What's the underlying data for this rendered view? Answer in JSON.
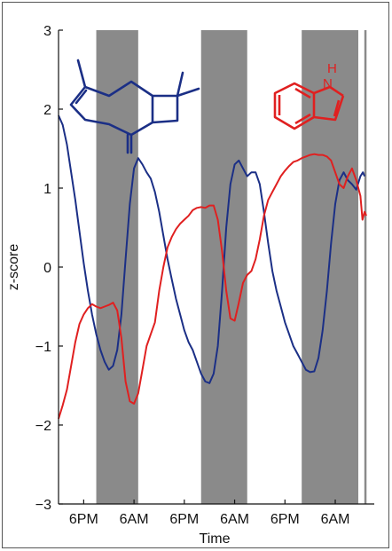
{
  "chart_data": {
    "type": "line",
    "xlabel": "Time",
    "ylabel": "z-score",
    "x_range": [
      0,
      72
    ],
    "ylim": [
      -3,
      3
    ],
    "y_ticks": [
      -3,
      -2,
      -1,
      0,
      1,
      2,
      3
    ],
    "x_ticks": [
      {
        "x": 6,
        "label": "6PM"
      },
      {
        "x": 18,
        "label": "6AM"
      },
      {
        "x": 30,
        "label": "6PM"
      },
      {
        "x": 42,
        "label": "6AM"
      },
      {
        "x": 54,
        "label": "6PM"
      },
      {
        "x": 66,
        "label": "6AM"
      }
    ],
    "dark_periods": [
      [
        9,
        19
      ],
      [
        34,
        45
      ],
      [
        58,
        72.5
      ]
    ],
    "end_marker_x": 73.2,
    "series": [
      {
        "color": "#1b2f86",
        "points": [
          [
            0,
            1.92
          ],
          [
            1,
            1.8
          ],
          [
            2,
            1.55
          ],
          [
            3,
            1.2
          ],
          [
            4,
            0.85
          ],
          [
            5,
            0.45
          ],
          [
            6,
            0.05
          ],
          [
            7,
            -0.3
          ],
          [
            8,
            -0.6
          ],
          [
            9,
            -0.85
          ],
          [
            10,
            -1.05
          ],
          [
            11,
            -1.2
          ],
          [
            12,
            -1.3
          ],
          [
            13,
            -1.25
          ],
          [
            14,
            -1.05
          ],
          [
            15,
            -0.6
          ],
          [
            16,
            0.1
          ],
          [
            17,
            0.8
          ],
          [
            18,
            1.25
          ],
          [
            19,
            1.38
          ],
          [
            20,
            1.3
          ],
          [
            21,
            1.2
          ],
          [
            22,
            1.12
          ],
          [
            23,
            0.95
          ],
          [
            24,
            0.7
          ],
          [
            25,
            0.4
          ],
          [
            26,
            0.1
          ],
          [
            27,
            -0.15
          ],
          [
            28,
            -0.4
          ],
          [
            29,
            -0.6
          ],
          [
            30,
            -0.8
          ],
          [
            31,
            -0.95
          ],
          [
            32,
            -1.05
          ],
          [
            33,
            -1.2
          ],
          [
            34,
            -1.35
          ],
          [
            35,
            -1.45
          ],
          [
            36,
            -1.47
          ],
          [
            37,
            -1.35
          ],
          [
            38,
            -1.0
          ],
          [
            39,
            -0.3
          ],
          [
            40,
            0.5
          ],
          [
            41,
            1.05
          ],
          [
            42,
            1.3
          ],
          [
            43,
            1.35
          ],
          [
            44,
            1.25
          ],
          [
            45,
            1.15
          ],
          [
            46,
            1.2
          ],
          [
            47,
            1.2
          ],
          [
            48,
            1.05
          ],
          [
            49,
            0.7
          ],
          [
            50,
            0.3
          ],
          [
            51,
            -0.05
          ],
          [
            52,
            -0.3
          ],
          [
            53,
            -0.5
          ],
          [
            54,
            -0.7
          ],
          [
            55,
            -0.85
          ],
          [
            56,
            -1.0
          ],
          [
            57,
            -1.1
          ],
          [
            58,
            -1.2
          ],
          [
            59,
            -1.3
          ],
          [
            60,
            -1.33
          ],
          [
            61,
            -1.32
          ],
          [
            62,
            -1.15
          ],
          [
            63,
            -0.8
          ],
          [
            64,
            -0.3
          ],
          [
            65,
            0.3
          ],
          [
            66,
            0.8
          ],
          [
            67,
            1.1
          ],
          [
            68,
            1.2
          ],
          [
            69,
            1.1
          ],
          [
            70,
            1.05
          ],
          [
            71,
            0.98
          ],
          [
            72,
            1.15
          ],
          [
            72.6,
            1.2
          ],
          [
            73,
            1.15
          ]
        ]
      },
      {
        "color": "#e02020",
        "points": [
          [
            0,
            -1.92
          ],
          [
            1,
            -1.75
          ],
          [
            2,
            -1.55
          ],
          [
            3,
            -1.25
          ],
          [
            4,
            -0.95
          ],
          [
            5,
            -0.72
          ],
          [
            6,
            -0.6
          ],
          [
            7,
            -0.52
          ],
          [
            8,
            -0.47
          ],
          [
            9,
            -0.5
          ],
          [
            10,
            -0.52
          ],
          [
            11,
            -0.5
          ],
          [
            12,
            -0.48
          ],
          [
            13,
            -0.45
          ],
          [
            14,
            -0.55
          ],
          [
            15,
            -0.9
          ],
          [
            16,
            -1.45
          ],
          [
            17,
            -1.7
          ],
          [
            18,
            -1.73
          ],
          [
            19,
            -1.6
          ],
          [
            20,
            -1.3
          ],
          [
            21,
            -1.0
          ],
          [
            22,
            -0.85
          ],
          [
            23,
            -0.7
          ],
          [
            24,
            -0.3
          ],
          [
            25,
            0.0
          ],
          [
            26,
            0.25
          ],
          [
            27,
            0.38
          ],
          [
            28,
            0.48
          ],
          [
            29,
            0.55
          ],
          [
            30,
            0.6
          ],
          [
            31,
            0.65
          ],
          [
            32,
            0.72
          ],
          [
            33,
            0.75
          ],
          [
            34,
            0.76
          ],
          [
            35,
            0.75
          ],
          [
            36,
            0.78
          ],
          [
            37,
            0.78
          ],
          [
            38,
            0.6
          ],
          [
            39,
            0.2
          ],
          [
            40,
            -0.3
          ],
          [
            41,
            -0.65
          ],
          [
            42,
            -0.68
          ],
          [
            43,
            -0.45
          ],
          [
            44,
            -0.2
          ],
          [
            45,
            -0.1
          ],
          [
            46,
            -0.05
          ],
          [
            47,
            0.1
          ],
          [
            48,
            0.35
          ],
          [
            49,
            0.65
          ],
          [
            50,
            0.85
          ],
          [
            51,
            0.95
          ],
          [
            52,
            1.05
          ],
          [
            53,
            1.15
          ],
          [
            54,
            1.22
          ],
          [
            55,
            1.28
          ],
          [
            56,
            1.33
          ],
          [
            57,
            1.35
          ],
          [
            58,
            1.38
          ],
          [
            59,
            1.4
          ],
          [
            60,
            1.42
          ],
          [
            61,
            1.43
          ],
          [
            62,
            1.42
          ],
          [
            63,
            1.42
          ],
          [
            64,
            1.4
          ],
          [
            65,
            1.35
          ],
          [
            66,
            1.2
          ],
          [
            67,
            1.05
          ],
          [
            68,
            1.0
          ],
          [
            69,
            1.15
          ],
          [
            70,
            1.25
          ],
          [
            71,
            1.1
          ],
          [
            72,
            0.9
          ],
          [
            72.5,
            0.6
          ],
          [
            73,
            0.7
          ],
          [
            73.4,
            0.65
          ]
        ]
      }
    ]
  },
  "molecules": {
    "left": {
      "color": "#1b2f86"
    },
    "right": {
      "color": "#e02020",
      "label_h": "H",
      "label_n": "N"
    }
  }
}
